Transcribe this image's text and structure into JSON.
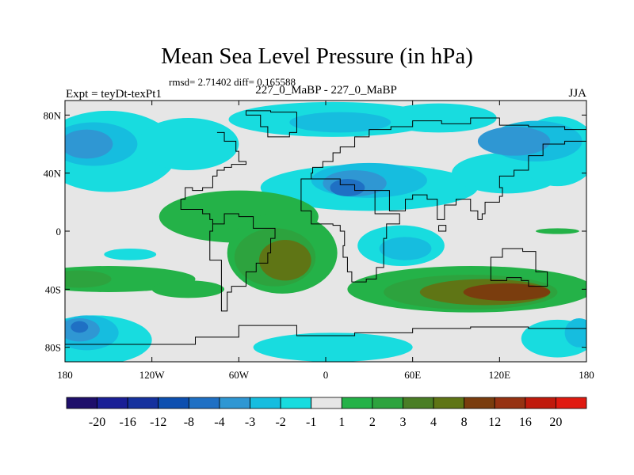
{
  "chart_data": {
    "type": "contour-map",
    "title": "Mean Sea Level Pressure (in hPa)",
    "subtitle": "rmsd= 2.71402 diff= 0.165588",
    "left_label": "Expt = teyDt-texPt1",
    "center_label": "227_0_MaBP - 227_0_MaBP",
    "right_label": "JJA",
    "x_range": [
      -180,
      180
    ],
    "y_range": [
      -90,
      90
    ],
    "x_ticks": [
      {
        "value": -180,
        "label": "180"
      },
      {
        "value": -120,
        "label": "120W"
      },
      {
        "value": -60,
        "label": "60W"
      },
      {
        "value": 0,
        "label": "0"
      },
      {
        "value": 60,
        "label": "60E"
      },
      {
        "value": 120,
        "label": "120E"
      },
      {
        "value": 180,
        "label": "180"
      }
    ],
    "y_ticks": [
      {
        "value": 80,
        "label": "80N"
      },
      {
        "value": 40,
        "label": "40N"
      },
      {
        "value": 0,
        "label": "0"
      },
      {
        "value": -40,
        "label": "40S"
      },
      {
        "value": -80,
        "label": "80S"
      }
    ],
    "colorbar": {
      "colors": [
        "#1e0f6b",
        "#1a1f96",
        "#15319e",
        "#0d4fb0",
        "#1f70c4",
        "#2f97d3",
        "#16bddf",
        "#18dcdf",
        "#e6e6e6",
        "#24b248",
        "#2da33e",
        "#4a7e25",
        "#5f7515",
        "#7a3d0e",
        "#963212",
        "#c01a0c",
        "#e01a10"
      ],
      "labels": [
        "-20",
        "-16",
        "-12",
        "-8",
        "-4",
        "-3",
        "-2",
        "-1",
        "1",
        "2",
        "3",
        "4",
        "8",
        "12",
        "16",
        "20"
      ]
    },
    "fields": [
      {
        "level": "-1",
        "color": "#18dcdf",
        "blobs": [
          {
            "lon": 5,
            "lat": 77,
            "rlon": 72,
            "rlat": 12
          },
          {
            "lon": 78,
            "lat": 78,
            "rlon": 40,
            "rlat": 10
          },
          {
            "lon": -150,
            "lat": 55,
            "rlon": 48,
            "rlat": 28
          },
          {
            "lon": -95,
            "lat": 60,
            "rlon": 35,
            "rlat": 18
          },
          {
            "lon": 30,
            "lat": 30,
            "rlon": 75,
            "rlat": 16
          },
          {
            "lon": 52,
            "lat": -10,
            "rlon": 30,
            "rlat": 14
          },
          {
            "lon": 125,
            "lat": 40,
            "rlon": 38,
            "rlat": 14
          },
          {
            "lon": 160,
            "lat": 55,
            "rlon": 28,
            "rlat": 24
          },
          {
            "lon": -160,
            "lat": -75,
            "rlon": 40,
            "rlat": 17
          },
          {
            "lon": 5,
            "lat": -80,
            "rlon": 55,
            "rlat": 10
          },
          {
            "lon": 160,
            "lat": -74,
            "rlon": 25,
            "rlat": 13
          },
          {
            "lon": -135,
            "lat": -16,
            "rlon": 18,
            "rlat": 4
          }
        ]
      },
      {
        "level": "-2",
        "color": "#16bddf",
        "blobs": [
          {
            "lon": 10,
            "lat": 75,
            "rlon": 35,
            "rlat": 7
          },
          {
            "lon": -160,
            "lat": 60,
            "rlon": 30,
            "rlat": 15
          },
          {
            "lon": 145,
            "lat": 62,
            "rlon": 32,
            "rlat": 14
          },
          {
            "lon": 30,
            "lat": 35,
            "rlon": 40,
            "rlat": 12
          },
          {
            "lon": 55,
            "lat": -12,
            "rlon": 18,
            "rlat": 8
          },
          {
            "lon": -165,
            "lat": -70,
            "rlon": 22,
            "rlat": 12
          },
          {
            "lon": 175,
            "lat": -70,
            "rlon": 10,
            "rlat": 10
          }
        ]
      },
      {
        "level": "-3",
        "color": "#2f97d3",
        "blobs": [
          {
            "lon": -165,
            "lat": 60,
            "rlon": 18,
            "rlat": 10
          },
          {
            "lon": 20,
            "lat": 33,
            "rlon": 22,
            "rlat": 9
          },
          {
            "lon": 130,
            "lat": 62,
            "rlon": 25,
            "rlat": 10
          },
          {
            "lon": -170,
            "lat": -68,
            "rlon": 14,
            "rlat": 8
          }
        ]
      },
      {
        "level": "-4",
        "color": "#1f70c4",
        "blobs": [
          {
            "lon": 15,
            "lat": 30,
            "rlon": 12,
            "rlat": 6
          },
          {
            "lon": -170,
            "lat": -66,
            "rlon": 6,
            "rlat": 4
          }
        ]
      },
      {
        "level": "1",
        "color": "#24b248",
        "blobs": [
          {
            "lon": -60,
            "lat": 10,
            "rlon": 55,
            "rlat": 18
          },
          {
            "lon": -30,
            "lat": -15,
            "rlon": 38,
            "rlat": 28
          },
          {
            "lon": -150,
            "lat": -33,
            "rlon": 60,
            "rlat": 9
          },
          {
            "lon": 100,
            "lat": -40,
            "rlon": 85,
            "rlat": 16
          },
          {
            "lon": -95,
            "lat": -40,
            "rlon": 25,
            "rlat": 6
          },
          {
            "lon": 160,
            "lat": 0,
            "rlon": 15,
            "rlat": 2
          }
        ]
      },
      {
        "level": "3",
        "color": "#2da33e",
        "blobs": [
          {
            "lon": -35,
            "lat": -18,
            "rlon": 28,
            "rlat": 20
          },
          {
            "lon": -170,
            "lat": -33,
            "rlon": 22,
            "rlat": 6
          },
          {
            "lon": 100,
            "lat": -42,
            "rlon": 60,
            "rlat": 12
          }
        ]
      },
      {
        "level": "4",
        "color": "#5f7515",
        "blobs": [
          {
            "lon": -28,
            "lat": -20,
            "rlon": 18,
            "rlat": 14
          },
          {
            "lon": 110,
            "lat": -42,
            "rlon": 45,
            "rlat": 9
          }
        ]
      },
      {
        "level": "8",
        "color": "#7a3d0e",
        "blobs": [
          {
            "lon": 125,
            "lat": -42,
            "rlon": 30,
            "rlat": 6
          }
        ]
      }
    ],
    "coast": [
      [
        [
          -20,
          82
        ],
        [
          -38,
          83
        ],
        [
          -55,
          80
        ],
        [
          -45,
          72
        ],
        [
          -40,
          65
        ],
        [
          -25,
          68
        ],
        [
          -20,
          75
        ],
        [
          -20,
          82
        ]
      ],
      [
        [
          -75,
          68
        ],
        [
          -70,
          62
        ],
        [
          -62,
          55
        ],
        [
          -60,
          48
        ],
        [
          -55,
          46
        ],
        [
          -65,
          44
        ],
        [
          -70,
          42
        ],
        [
          -75,
          38
        ],
        [
          -78,
          30
        ],
        [
          -85,
          28
        ],
        [
          -92,
          30
        ],
        [
          -97,
          22
        ],
        [
          -100,
          15
        ],
        [
          -85,
          12
        ],
        [
          -80,
          8
        ],
        [
          -78,
          5
        ],
        [
          -70,
          12
        ],
        [
          -60,
          10
        ],
        [
          -50,
          2
        ],
        [
          -35,
          -5
        ],
        [
          -38,
          -15
        ],
        [
          -40,
          -22
        ],
        [
          -48,
          -28
        ],
        [
          -55,
          -38
        ],
        [
          -65,
          -42
        ],
        [
          -68,
          -55
        ],
        [
          -72,
          -50
        ],
        [
          -72,
          -30
        ],
        [
          -72,
          -20
        ],
        [
          -80,
          -5
        ],
        [
          -80,
          0
        ],
        [
          -78,
          8
        ]
      ],
      [
        [
          -5,
          36
        ],
        [
          -10,
          40
        ],
        [
          -9,
          44
        ],
        [
          -2,
          48
        ],
        [
          5,
          54
        ],
        [
          10,
          58
        ],
        [
          20,
          65
        ],
        [
          30,
          70
        ],
        [
          45,
          72
        ],
        [
          60,
          76
        ],
        [
          80,
          74
        ],
        [
          100,
          78
        ],
        [
          120,
          73
        ],
        [
          140,
          72
        ],
        [
          165,
          70
        ],
        [
          180,
          68
        ]
      ],
      [
        [
          -17,
          20
        ],
        [
          -17,
          14
        ],
        [
          -10,
          5
        ],
        [
          5,
          4
        ],
        [
          10,
          0
        ],
        [
          13,
          -10
        ],
        [
          12,
          -18
        ],
        [
          15,
          -28
        ],
        [
          18,
          -35
        ],
        [
          28,
          -33
        ],
        [
          35,
          -25
        ],
        [
          40,
          -15
        ],
        [
          40,
          -5
        ],
        [
          42,
          5
        ],
        [
          51,
          12
        ],
        [
          44,
          12
        ],
        [
          34,
          28
        ],
        [
          20,
          32
        ],
        [
          10,
          36
        ],
        [
          -5,
          36
        ],
        [
          -17,
          20
        ]
      ],
      [
        [
          34,
          28
        ],
        [
          44,
          14
        ],
        [
          55,
          22
        ],
        [
          60,
          25
        ],
        [
          70,
          22
        ],
        [
          77,
          8
        ],
        [
          82,
          18
        ],
        [
          90,
          22
        ],
        [
          100,
          14
        ],
        [
          105,
          8
        ],
        [
          108,
          12
        ],
        [
          110,
          20
        ],
        [
          120,
          24
        ],
        [
          122,
          30
        ],
        [
          120,
          38
        ],
        [
          130,
          42
        ],
        [
          140,
          52
        ],
        [
          150,
          60
        ],
        [
          160,
          60
        ],
        [
          165,
          62
        ],
        [
          180,
          66
        ]
      ],
      [
        [
          114,
          -22
        ],
        [
          114,
          -34
        ],
        [
          125,
          -32
        ],
        [
          135,
          -34
        ],
        [
          140,
          -38
        ],
        [
          148,
          -38
        ],
        [
          153,
          -28
        ],
        [
          145,
          -14
        ],
        [
          136,
          -12
        ],
        [
          130,
          -12
        ],
        [
          122,
          -18
        ],
        [
          114,
          -22
        ]
      ],
      [
        [
          -180,
          -78
        ],
        [
          -90,
          -73
        ],
        [
          -60,
          -65
        ],
        [
          -20,
          -72
        ],
        [
          20,
          -70
        ],
        [
          60,
          -67
        ],
        [
          100,
          -66
        ],
        [
          140,
          -67
        ],
        [
          180,
          -78
        ]
      ],
      [
        [
          78,
          4
        ],
        [
          83,
          4
        ],
        [
          83,
          0
        ],
        [
          78,
          0
        ],
        [
          78,
          4
        ]
      ]
    ]
  }
}
